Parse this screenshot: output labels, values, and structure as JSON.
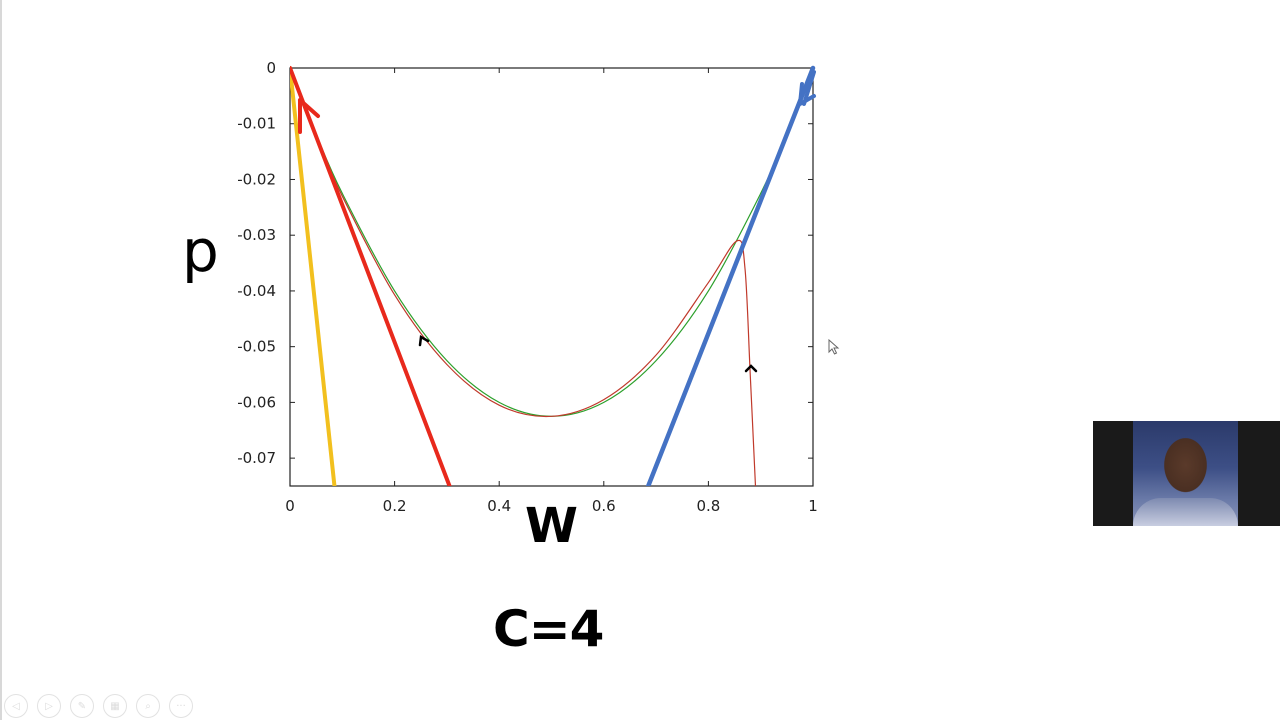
{
  "slide": {
    "caption": "C=4",
    "y_axis_label": "p",
    "x_axis_label": "W"
  },
  "chart_data": {
    "type": "line",
    "title": "",
    "xlabel": "W",
    "ylabel": "p",
    "xlim": [
      0,
      1
    ],
    "ylim": [
      -0.075,
      0
    ],
    "x_ticks": [
      "0",
      "0.2",
      "0.4",
      "0.6",
      "0.8",
      "1"
    ],
    "y_ticks": [
      "0",
      "-0.01",
      "-0.02",
      "-0.03",
      "-0.04",
      "-0.05",
      "-0.06",
      "-0.07"
    ],
    "grid": false,
    "legend": null,
    "series": [
      {
        "name": "green-curve",
        "color": "#2ca02c",
        "x": [
          0.0,
          0.05,
          0.1,
          0.2,
          0.3,
          0.4,
          0.5,
          0.6,
          0.7,
          0.8,
          0.9,
          0.95,
          1.0
        ],
        "y": [
          0.0,
          -0.0119,
          -0.0225,
          -0.04,
          -0.0525,
          -0.06,
          -0.0625,
          -0.06,
          -0.0525,
          -0.04,
          -0.0225,
          -0.0119,
          0.0
        ]
      },
      {
        "name": "red-thin-curve",
        "color": "#c0392b",
        "x": [
          0.0,
          0.05,
          0.1,
          0.2,
          0.3,
          0.4,
          0.5,
          0.6,
          0.7,
          0.8,
          0.855,
          0.87,
          0.88,
          0.89
        ],
        "y": [
          0.0,
          -0.0122,
          -0.023,
          -0.0407,
          -0.0532,
          -0.0605,
          -0.0625,
          -0.0595,
          -0.0515,
          -0.0385,
          -0.031,
          -0.036,
          -0.055,
          -0.075
        ]
      },
      {
        "name": "red-tangent-line",
        "color": "#e8291c",
        "x": [
          0.0,
          0.305
        ],
        "y": [
          0.0,
          -0.075
        ]
      },
      {
        "name": "yellow-tangent-line",
        "color": "#f2c01e",
        "x": [
          0.0,
          0.085
        ],
        "y": [
          0.0,
          -0.075
        ]
      },
      {
        "name": "blue-tangent-line",
        "color": "#4472c4",
        "x": [
          0.685,
          1.0
        ],
        "y": [
          -0.075,
          0.0
        ]
      }
    ],
    "annotations": [
      {
        "type": "arrow",
        "on": "red-tangent-line",
        "at": [
          0.02,
          -0.006
        ],
        "direction": "up"
      },
      {
        "type": "arrow",
        "on": "blue-tangent-line",
        "at": [
          0.985,
          -0.005
        ],
        "direction": "down"
      },
      {
        "type": "arrowhead",
        "on": "red-thin-curve",
        "at": [
          0.25,
          -0.048
        ],
        "direction": "up-left"
      },
      {
        "type": "arrowhead",
        "on": "red-thin-curve",
        "at": [
          0.88,
          -0.053
        ],
        "direction": "up"
      }
    ]
  },
  "presenter_toolbar": {
    "buttons": [
      "previous",
      "next",
      "pen",
      "slides",
      "zoom",
      "more"
    ]
  },
  "colors": {
    "red": "#e8291c",
    "yellow": "#f2c01e",
    "blue": "#4472c4",
    "green": "#2ca02c",
    "thin_red": "#c0392b"
  }
}
